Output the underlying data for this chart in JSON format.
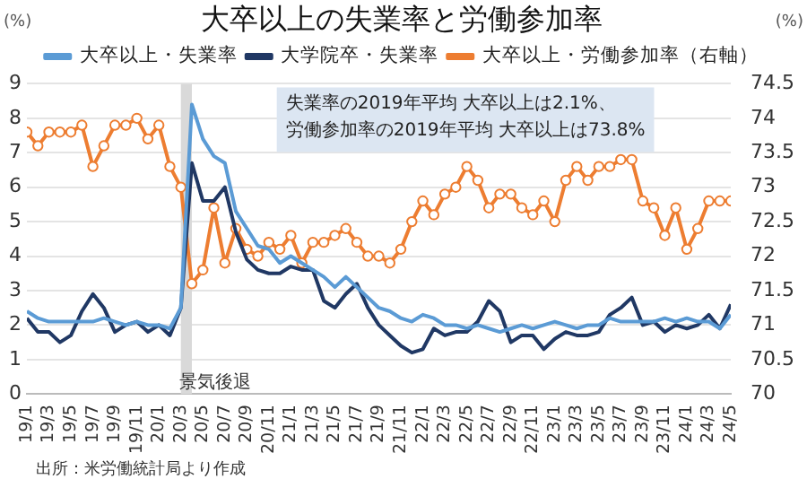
{
  "chart_data": {
    "type": "line",
    "title": "大卒以上の失業率と労働参加率",
    "ylabel": "(%)",
    "y2label": "(%)",
    "x": [
      "2019-01",
      "2019-02",
      "2019-03",
      "2019-04",
      "2019-05",
      "2019-06",
      "2019-07",
      "2019-08",
      "2019-09",
      "2019-10",
      "2019-11",
      "2019-12",
      "2020-01",
      "2020-02",
      "2020-03",
      "2020-04",
      "2020-05",
      "2020-06",
      "2020-07",
      "2020-08",
      "2020-09",
      "2020-10",
      "2020-11",
      "2020-12",
      "2021-01",
      "2021-02",
      "2021-03",
      "2021-04",
      "2021-05",
      "2021-06",
      "2021-07",
      "2021-08",
      "2021-09",
      "2021-10",
      "2021-11",
      "2021-12",
      "2022-01",
      "2022-02",
      "2022-03",
      "2022-04",
      "2022-05",
      "2022-06",
      "2022-07",
      "2022-08",
      "2022-09",
      "2022-10",
      "2022-11",
      "2022-12",
      "2023-01",
      "2023-02",
      "2023-03",
      "2023-04",
      "2023-05",
      "2023-06",
      "2023-07",
      "2023-08",
      "2023-09",
      "2023-10",
      "2023-11",
      "2023-12",
      "2024-01",
      "2024-02",
      "2024-03",
      "2024-04",
      "2024-05"
    ],
    "xlim": [
      "2019-01",
      "2024-05"
    ],
    "xticks": [
      {
        "value": "2019-01",
        "label": "19/1"
      },
      {
        "value": "2019-03",
        "label": "19/3"
      },
      {
        "value": "2019-05",
        "label": "19/5"
      },
      {
        "value": "2019-07",
        "label": "19/7"
      },
      {
        "value": "2019-09",
        "label": "19/9"
      },
      {
        "value": "2019-11",
        "label": "19/11"
      },
      {
        "value": "2020-01",
        "label": "20/1"
      },
      {
        "value": "2020-03",
        "label": "20/3"
      },
      {
        "value": "2020-05",
        "label": "20/5"
      },
      {
        "value": "2020-07",
        "label": "20/7"
      },
      {
        "value": "2020-09",
        "label": "20/9"
      },
      {
        "value": "2020-11",
        "label": "20/11"
      },
      {
        "value": "2021-01",
        "label": "21/1"
      },
      {
        "value": "2021-03",
        "label": "21/3"
      },
      {
        "value": "2021-05",
        "label": "21/5"
      },
      {
        "value": "2021-07",
        "label": "21/7"
      },
      {
        "value": "2021-09",
        "label": "21/9"
      },
      {
        "value": "2021-11",
        "label": "21/11"
      },
      {
        "value": "2022-01",
        "label": "22/1"
      },
      {
        "value": "2022-03",
        "label": "22/3"
      },
      {
        "value": "2022-05",
        "label": "22/5"
      },
      {
        "value": "2022-07",
        "label": "22/7"
      },
      {
        "value": "2022-09",
        "label": "22/9"
      },
      {
        "value": "2022-11",
        "label": "22/11"
      },
      {
        "value": "2023-01",
        "label": "23/1"
      },
      {
        "value": "2023-03",
        "label": "23/3"
      },
      {
        "value": "2023-05",
        "label": "23/5"
      },
      {
        "value": "2023-07",
        "label": "23/7"
      },
      {
        "value": "2023-09",
        "label": "23/9"
      },
      {
        "value": "2023-11",
        "label": "23/11"
      },
      {
        "value": "2024-01",
        "label": "24/1"
      },
      {
        "value": "2024-03",
        "label": "24/3"
      },
      {
        "value": "2024-05",
        "label": "24/5"
      }
    ],
    "ylim": [
      0,
      9
    ],
    "yticks": [
      0,
      1,
      2,
      3,
      4,
      5,
      6,
      7,
      8,
      9
    ],
    "y2lim": [
      70,
      74.5
    ],
    "y2ticks": [
      70,
      70.5,
      71,
      71.5,
      72,
      72.5,
      73,
      73.5,
      74,
      74.5
    ],
    "series": [
      {
        "name": "大卒以上・失業率",
        "color": "#5b9bd5",
        "values": [
          2.4,
          2.2,
          2.1,
          2.1,
          2.1,
          2.1,
          2.1,
          2.2,
          2.1,
          2.0,
          2.1,
          2.0,
          2.0,
          1.9,
          2.5,
          8.4,
          7.4,
          6.9,
          6.7,
          5.3,
          4.8,
          4.3,
          4.2,
          3.8,
          4.0,
          3.8,
          3.6,
          3.4,
          3.1,
          3.4,
          3.1,
          2.8,
          2.5,
          2.4,
          2.2,
          2.1,
          2.3,
          2.2,
          2.0,
          2.0,
          1.9,
          2.0,
          1.9,
          1.8,
          1.9,
          2.0,
          1.9,
          2.0,
          2.1,
          2.0,
          1.9,
          2.0,
          2.0,
          2.2,
          2.1,
          2.1,
          2.1,
          2.1,
          2.2,
          2.1,
          2.2,
          2.1,
          2.1,
          1.9,
          2.3
        ]
      },
      {
        "name": "大学院卒・失業率",
        "color": "#203864",
        "values": [
          2.2,
          1.8,
          1.8,
          1.5,
          1.7,
          2.4,
          2.9,
          2.5,
          1.8,
          2.0,
          2.1,
          1.8,
          2.0,
          1.7,
          2.5,
          6.7,
          5.6,
          5.6,
          6.0,
          4.7,
          3.9,
          3.6,
          3.5,
          3.5,
          3.7,
          3.6,
          3.6,
          2.7,
          2.5,
          2.9,
          3.2,
          2.5,
          2.0,
          1.7,
          1.4,
          1.2,
          1.3,
          1.9,
          1.7,
          1.8,
          1.8,
          2.1,
          2.7,
          2.4,
          1.5,
          1.7,
          1.7,
          1.3,
          1.6,
          1.8,
          1.7,
          1.7,
          1.8,
          2.3,
          2.5,
          2.8,
          2.0,
          2.1,
          1.8,
          2.0,
          1.9,
          2.0,
          2.3,
          1.9,
          2.6
        ]
      },
      {
        "name": "大卒以上・労働参加率（右軸）",
        "color": "#ed7d31",
        "axis": "y2",
        "marker": "circle",
        "values": [
          73.8,
          73.6,
          73.8,
          73.8,
          73.8,
          73.9,
          73.3,
          73.6,
          73.9,
          73.9,
          74.0,
          73.7,
          73.9,
          73.3,
          73.0,
          71.6,
          71.8,
          72.7,
          71.9,
          72.4,
          72.1,
          72.0,
          72.2,
          72.1,
          72.3,
          71.9,
          72.2,
          72.2,
          72.3,
          72.4,
          72.2,
          72.0,
          72.0,
          71.9,
          72.1,
          72.5,
          72.8,
          72.6,
          72.9,
          73.0,
          73.3,
          73.1,
          72.7,
          72.9,
          72.9,
          72.7,
          72.6,
          72.8,
          72.5,
          73.1,
          73.3,
          73.1,
          73.3,
          73.3,
          73.4,
          73.4,
          72.8,
          72.7,
          72.3,
          72.7,
          72.1,
          72.4,
          72.8,
          72.8,
          72.8
        ]
      }
    ],
    "bands": [
      {
        "axis": "x",
        "from": "2020-03",
        "to": "2020-04",
        "label": "景気後退",
        "color": "#d9d9d9"
      }
    ],
    "annotations": [
      "失業率の2019年平均 大卒以上は2.1%、",
      "労働参加率の2019年平均 大卒以上は73.8%",
      "出所：米労働統計局より作成"
    ],
    "grid": "y",
    "legend": "top"
  }
}
